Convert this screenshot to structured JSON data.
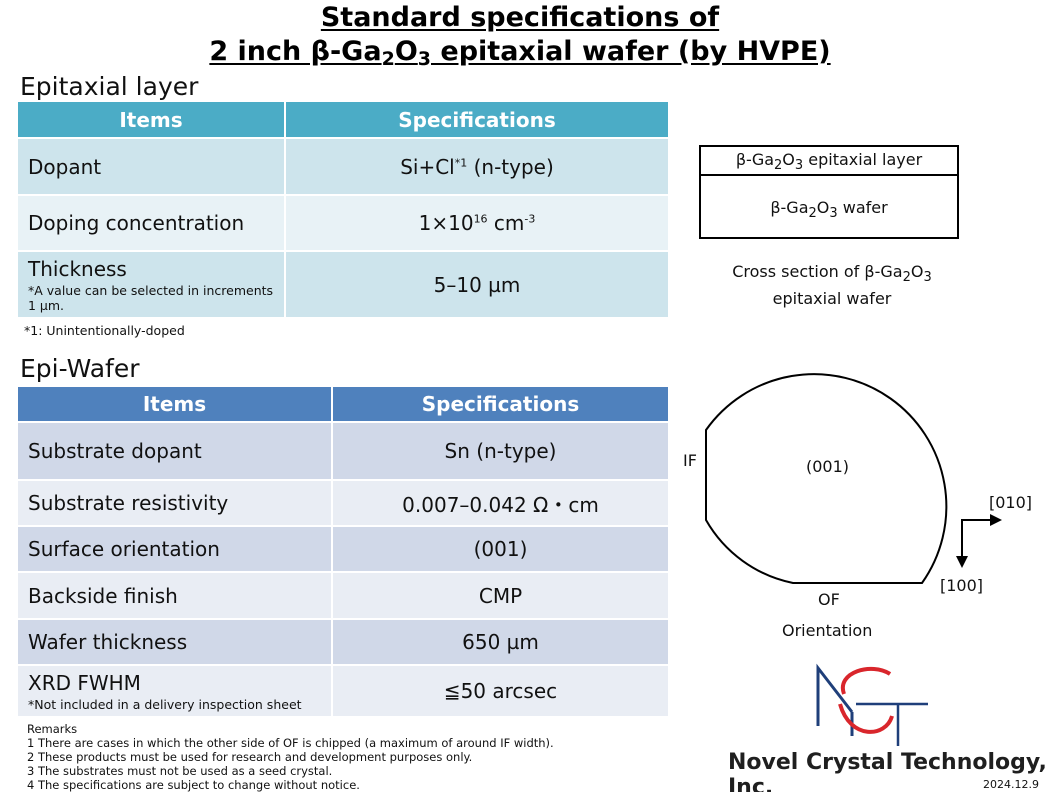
{
  "title": {
    "line1": "Standard specifications of",
    "line2_pre": "2 inch β-Ga",
    "line2_sub1": "2",
    "line2_mid": "O",
    "line2_sub2": "3",
    "line2_post": " epitaxial wafer (by HVPE)"
  },
  "epitaxial": {
    "heading": "Epitaxial layer",
    "col_items": "Items",
    "col_spec": "Specifications",
    "dopant_label": "Dopant",
    "dopant_value": "Si+Cl",
    "dopant_sup": "*1",
    "dopant_type": " (n-type)",
    "conc_label": "Doping concentration",
    "conc_base": "1×10",
    "conc_exp": "16",
    "conc_unit": " cm",
    "conc_unit_exp": "-3",
    "thick_label": "Thickness",
    "thick_note": "*A value can be selected in increments 1 µm.",
    "thick_value": "5–10 µm",
    "footnote": "*1: Unintentionally-doped"
  },
  "epiwafer": {
    "heading": "Epi-Wafer",
    "col_items": "Items",
    "col_spec": "Specifications",
    "rows": [
      {
        "label": "Substrate dopant",
        "value": "Sn (n-type)"
      },
      {
        "label": "Substrate resistivity",
        "value": "0.007–0.042 Ω・cm"
      },
      {
        "label": "Surface orientation",
        "value": "(001)"
      },
      {
        "label": "Backside finish",
        "value": "CMP"
      },
      {
        "label": "Wafer thickness",
        "value": "650 µm"
      }
    ],
    "xrd_label": "XRD FWHM",
    "xrd_note": "*Not included in a delivery inspection sheet",
    "xrd_value": "≦50 arcsec"
  },
  "cross_section": {
    "epi_pre": "β-Ga",
    "epi_sub1": "2",
    "epi_mid": "O",
    "epi_sub2": "3",
    "epi_post": " epitaxial layer",
    "wafer_pre": "β-Ga",
    "wafer_sub1": "2",
    "wafer_mid": "O",
    "wafer_sub2": "3",
    "wafer_post": " wafer",
    "caption_pre": "Cross section of β-Ga",
    "caption_sub1": "2",
    "caption_mid": "O",
    "caption_sub2": "3",
    "caption_line2": "epitaxial wafer"
  },
  "orientation": {
    "if_label": "IF",
    "center_label": "(001)",
    "of_label": "OF",
    "dir_010": "[010]",
    "dir_100": "[100]",
    "caption": "Orientation"
  },
  "remarks": {
    "heading": "Remarks",
    "items": [
      "1 There are cases in which the other side of OF is chipped (a maximum of around IF width).",
      "2 These products must be used for research and development purposes only.",
      "3 The substrates must not be used as a seed crystal.",
      "4 The specifications are subject to change without notice."
    ]
  },
  "company": "Novel Crystal Technology, Inc.",
  "date": "2024.12.9",
  "colors": {
    "epi_header": "#4bacc6",
    "wafer_header": "#4f81bd",
    "logo_red": "#d9262c",
    "logo_blue": "#1f3f7a"
  }
}
